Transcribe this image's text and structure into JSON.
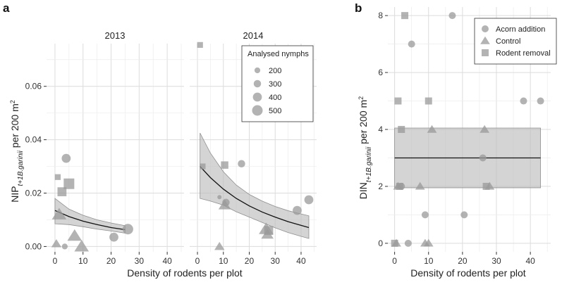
{
  "panel_a_label": "a",
  "panel_b_label": "b",
  "chart_data": [
    {
      "id": "a-2013",
      "type": "scatter",
      "facet_title": "2013",
      "xlabel": "Density of rodents per plot",
      "ylabel": "NIP t+1 B.garinii per 200 m2",
      "ylabel_parts": {
        "main": "NIP",
        "sub": "t+1B.garinii",
        "tail": " per 200 m",
        "sup": "2"
      },
      "xlim": [
        -3,
        46
      ],
      "ylim": [
        -0.002,
        0.076
      ],
      "xticks": [
        0,
        10,
        20,
        30,
        40
      ],
      "yticks": [
        0.0,
        0.02,
        0.04,
        0.06
      ],
      "ytick_labels": [
        "0.00",
        "0.02",
        "0.04",
        "0.06"
      ],
      "fit": {
        "x": [
          0,
          5,
          10,
          15,
          20,
          25
        ],
        "y": [
          0.0135,
          0.0112,
          0.0095,
          0.0082,
          0.0071,
          0.0063
        ],
        "lower": [
          0.0085,
          0.0082,
          0.0074,
          0.0065,
          0.0058,
          0.005
        ],
        "upper": [
          0.018,
          0.014,
          0.0117,
          0.01,
          0.0088,
          0.0078
        ]
      },
      "points": [
        {
          "x": 1,
          "y": 0.026,
          "shape": "square",
          "size": 200
        },
        {
          "x": 2.5,
          "y": 0.0205,
          "shape": "square",
          "size": 400
        },
        {
          "x": 5,
          "y": 0.0235,
          "shape": "square",
          "size": 500
        },
        {
          "x": 4,
          "y": 0.033,
          "shape": "circle",
          "size": 400
        },
        {
          "x": 1.5,
          "y": 0.012,
          "shape": "triangle",
          "size": 500
        },
        {
          "x": 0.5,
          "y": 0.001,
          "shape": "triangle",
          "size": 300
        },
        {
          "x": 3.5,
          "y": 0.0,
          "shape": "circle",
          "size": 200
        },
        {
          "x": 7,
          "y": 0.004,
          "shape": "triangle",
          "size": 500
        },
        {
          "x": 9.5,
          "y": 0.0,
          "shape": "triangle",
          "size": 500
        },
        {
          "x": 21,
          "y": 0.0035,
          "shape": "circle",
          "size": 400
        },
        {
          "x": 26,
          "y": 0.0065,
          "shape": "circle",
          "size": 500
        }
      ]
    },
    {
      "id": "a-2014",
      "type": "scatter",
      "facet_title": "2014",
      "xlabel": "Density of rodents per plot",
      "xlim": [
        -3,
        46
      ],
      "ylim": [
        -0.002,
        0.076
      ],
      "xticks": [
        0,
        10,
        20,
        30,
        40
      ],
      "fit": {
        "x": [
          1,
          5,
          10,
          15,
          20,
          25,
          30,
          35,
          40,
          43
        ],
        "y": [
          0.03,
          0.0258,
          0.0215,
          0.018,
          0.0152,
          0.0129,
          0.011,
          0.0093,
          0.0079,
          0.0071
        ],
        "lower": [
          0.018,
          0.017,
          0.0155,
          0.013,
          0.011,
          0.009,
          0.007,
          0.0052,
          0.0038,
          0.003
        ],
        "upper": [
          0.0425,
          0.035,
          0.028,
          0.023,
          0.0195,
          0.017,
          0.015,
          0.0134,
          0.0122,
          0.0115
        ]
      },
      "points": [
        {
          "x": 1,
          "y": 0.0755,
          "shape": "square",
          "size": 200
        },
        {
          "x": 2,
          "y": 0.03,
          "shape": "square",
          "size": 200
        },
        {
          "x": 10.5,
          "y": 0.0305,
          "shape": "square",
          "size": 300
        },
        {
          "x": 8.5,
          "y": 0.0185,
          "shape": "circle",
          "size": 100
        },
        {
          "x": 10.5,
          "y": 0.0155,
          "shape": "triangle",
          "size": 400
        },
        {
          "x": 11,
          "y": 0.0165,
          "shape": "circle",
          "size": 300
        },
        {
          "x": 8.5,
          "y": 0.0,
          "shape": "triangle",
          "size": 300
        },
        {
          "x": 17,
          "y": 0.031,
          "shape": "circle",
          "size": 300
        },
        {
          "x": 26.5,
          "y": 0.0065,
          "shape": "triangle",
          "size": 500
        },
        {
          "x": 27,
          "y": 0.0045,
          "shape": "triangle",
          "size": 400
        },
        {
          "x": 27.5,
          "y": 0.006,
          "shape": "square",
          "size": 400
        },
        {
          "x": 38.5,
          "y": 0.0135,
          "shape": "circle",
          "size": 400
        },
        {
          "x": 43,
          "y": 0.0175,
          "shape": "circle",
          "size": 400
        }
      ]
    },
    {
      "id": "b",
      "type": "scatter",
      "xlabel": "Density of rodents per plot",
      "ylabel": "DIN t+1 B.garinii per 200 m2",
      "ylabel_parts": {
        "main": "DIN",
        "sub": "t+1B.garinii",
        "tail": " per 200 m",
        "sup": "2"
      },
      "xlim": [
        -2,
        46
      ],
      "ylim": [
        -0.3,
        8.3
      ],
      "xticks": [
        0,
        10,
        20,
        30,
        40
      ],
      "yticks": [
        0,
        2,
        4,
        6,
        8
      ],
      "fit": {
        "x": [
          0,
          43
        ],
        "y": [
          3.0,
          3.0
        ],
        "lower": [
          1.95,
          1.95
        ],
        "upper": [
          4.05,
          4.05
        ]
      },
      "legend": {
        "items": [
          {
            "label": "Acorn addition",
            "shape": "circle"
          },
          {
            "label": "Control",
            "shape": "triangle"
          },
          {
            "label": "Rodent removal",
            "shape": "square"
          }
        ]
      },
      "points": [
        {
          "x": 3,
          "y": 8,
          "shape": "square"
        },
        {
          "x": 17,
          "y": 8,
          "shape": "circle"
        },
        {
          "x": 5,
          "y": 7,
          "shape": "circle"
        },
        {
          "x": 1,
          "y": 5,
          "shape": "square"
        },
        {
          "x": 10,
          "y": 5,
          "shape": "square"
        },
        {
          "x": 38,
          "y": 5,
          "shape": "circle"
        },
        {
          "x": 43,
          "y": 5,
          "shape": "circle"
        },
        {
          "x": 2,
          "y": 4,
          "shape": "square"
        },
        {
          "x": 11,
          "y": 4,
          "shape": "triangle"
        },
        {
          "x": 26.5,
          "y": 4,
          "shape": "triangle"
        },
        {
          "x": 26,
          "y": 3,
          "shape": "circle"
        },
        {
          "x": 1,
          "y": 2,
          "shape": "triangle"
        },
        {
          "x": 1.5,
          "y": 2,
          "shape": "square"
        },
        {
          "x": 2,
          "y": 2,
          "shape": "circle"
        },
        {
          "x": 7.5,
          "y": 2,
          "shape": "triangle"
        },
        {
          "x": 27,
          "y": 2,
          "shape": "square"
        },
        {
          "x": 28,
          "y": 2,
          "shape": "triangle"
        },
        {
          "x": 9,
          "y": 1,
          "shape": "circle"
        },
        {
          "x": 20.5,
          "y": 1,
          "shape": "circle"
        },
        {
          "x": 0,
          "y": 0,
          "shape": "square"
        },
        {
          "x": 0.5,
          "y": 0,
          "shape": "triangle"
        },
        {
          "x": 4,
          "y": 0,
          "shape": "circle"
        },
        {
          "x": 9,
          "y": 0,
          "shape": "triangle"
        },
        {
          "x": 10,
          "y": 0,
          "shape": "triangle"
        }
      ]
    }
  ],
  "size_legend": {
    "title": "Analysed nymphs",
    "items": [
      {
        "label": "200",
        "value": 200
      },
      {
        "label": "300",
        "value": 300
      },
      {
        "label": "400",
        "value": 400
      },
      {
        "label": "500",
        "value": 500
      }
    ]
  }
}
